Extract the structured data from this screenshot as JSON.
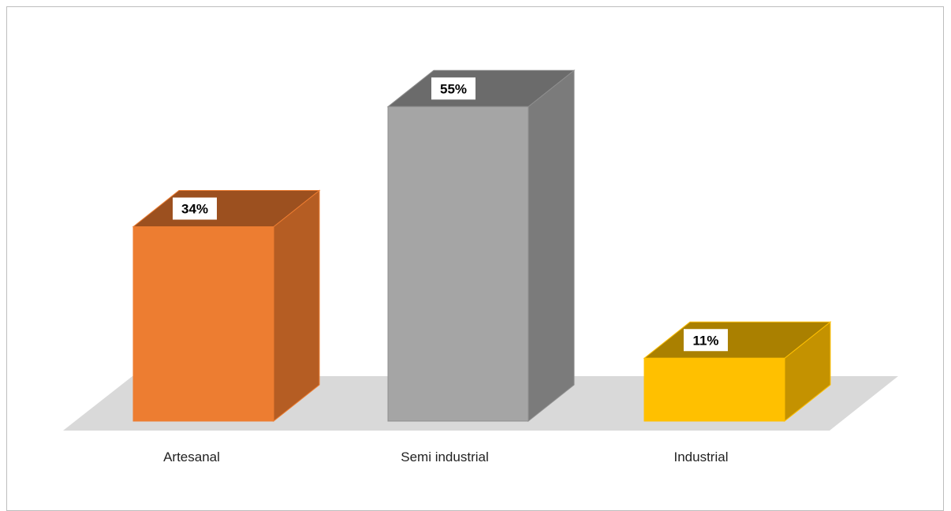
{
  "chart_data": {
    "type": "bar",
    "style": "3d-column",
    "categories": [
      "Artesanal",
      "Semi industrial",
      "Industrial"
    ],
    "values": [
      34,
      55,
      11
    ],
    "data_labels": [
      "34%",
      "55%",
      "11%"
    ],
    "unit": "%",
    "title": "",
    "xlabel": "",
    "ylabel": "",
    "ylim": [
      0,
      60
    ],
    "grid": false,
    "legend": "none",
    "colors": {
      "front": [
        "#ed7d31",
        "#a5a5a5",
        "#ffc000"
      ],
      "side": [
        "#b55d23",
        "#7b7b7b",
        "#c49200"
      ],
      "top": [
        "#9c501f",
        "#6b6b6b",
        "#aa8000"
      ],
      "outline": [
        "#ed7d31",
        "#8f8f8f",
        "#ffc000"
      ],
      "floor": "#d9d9d9"
    }
  }
}
